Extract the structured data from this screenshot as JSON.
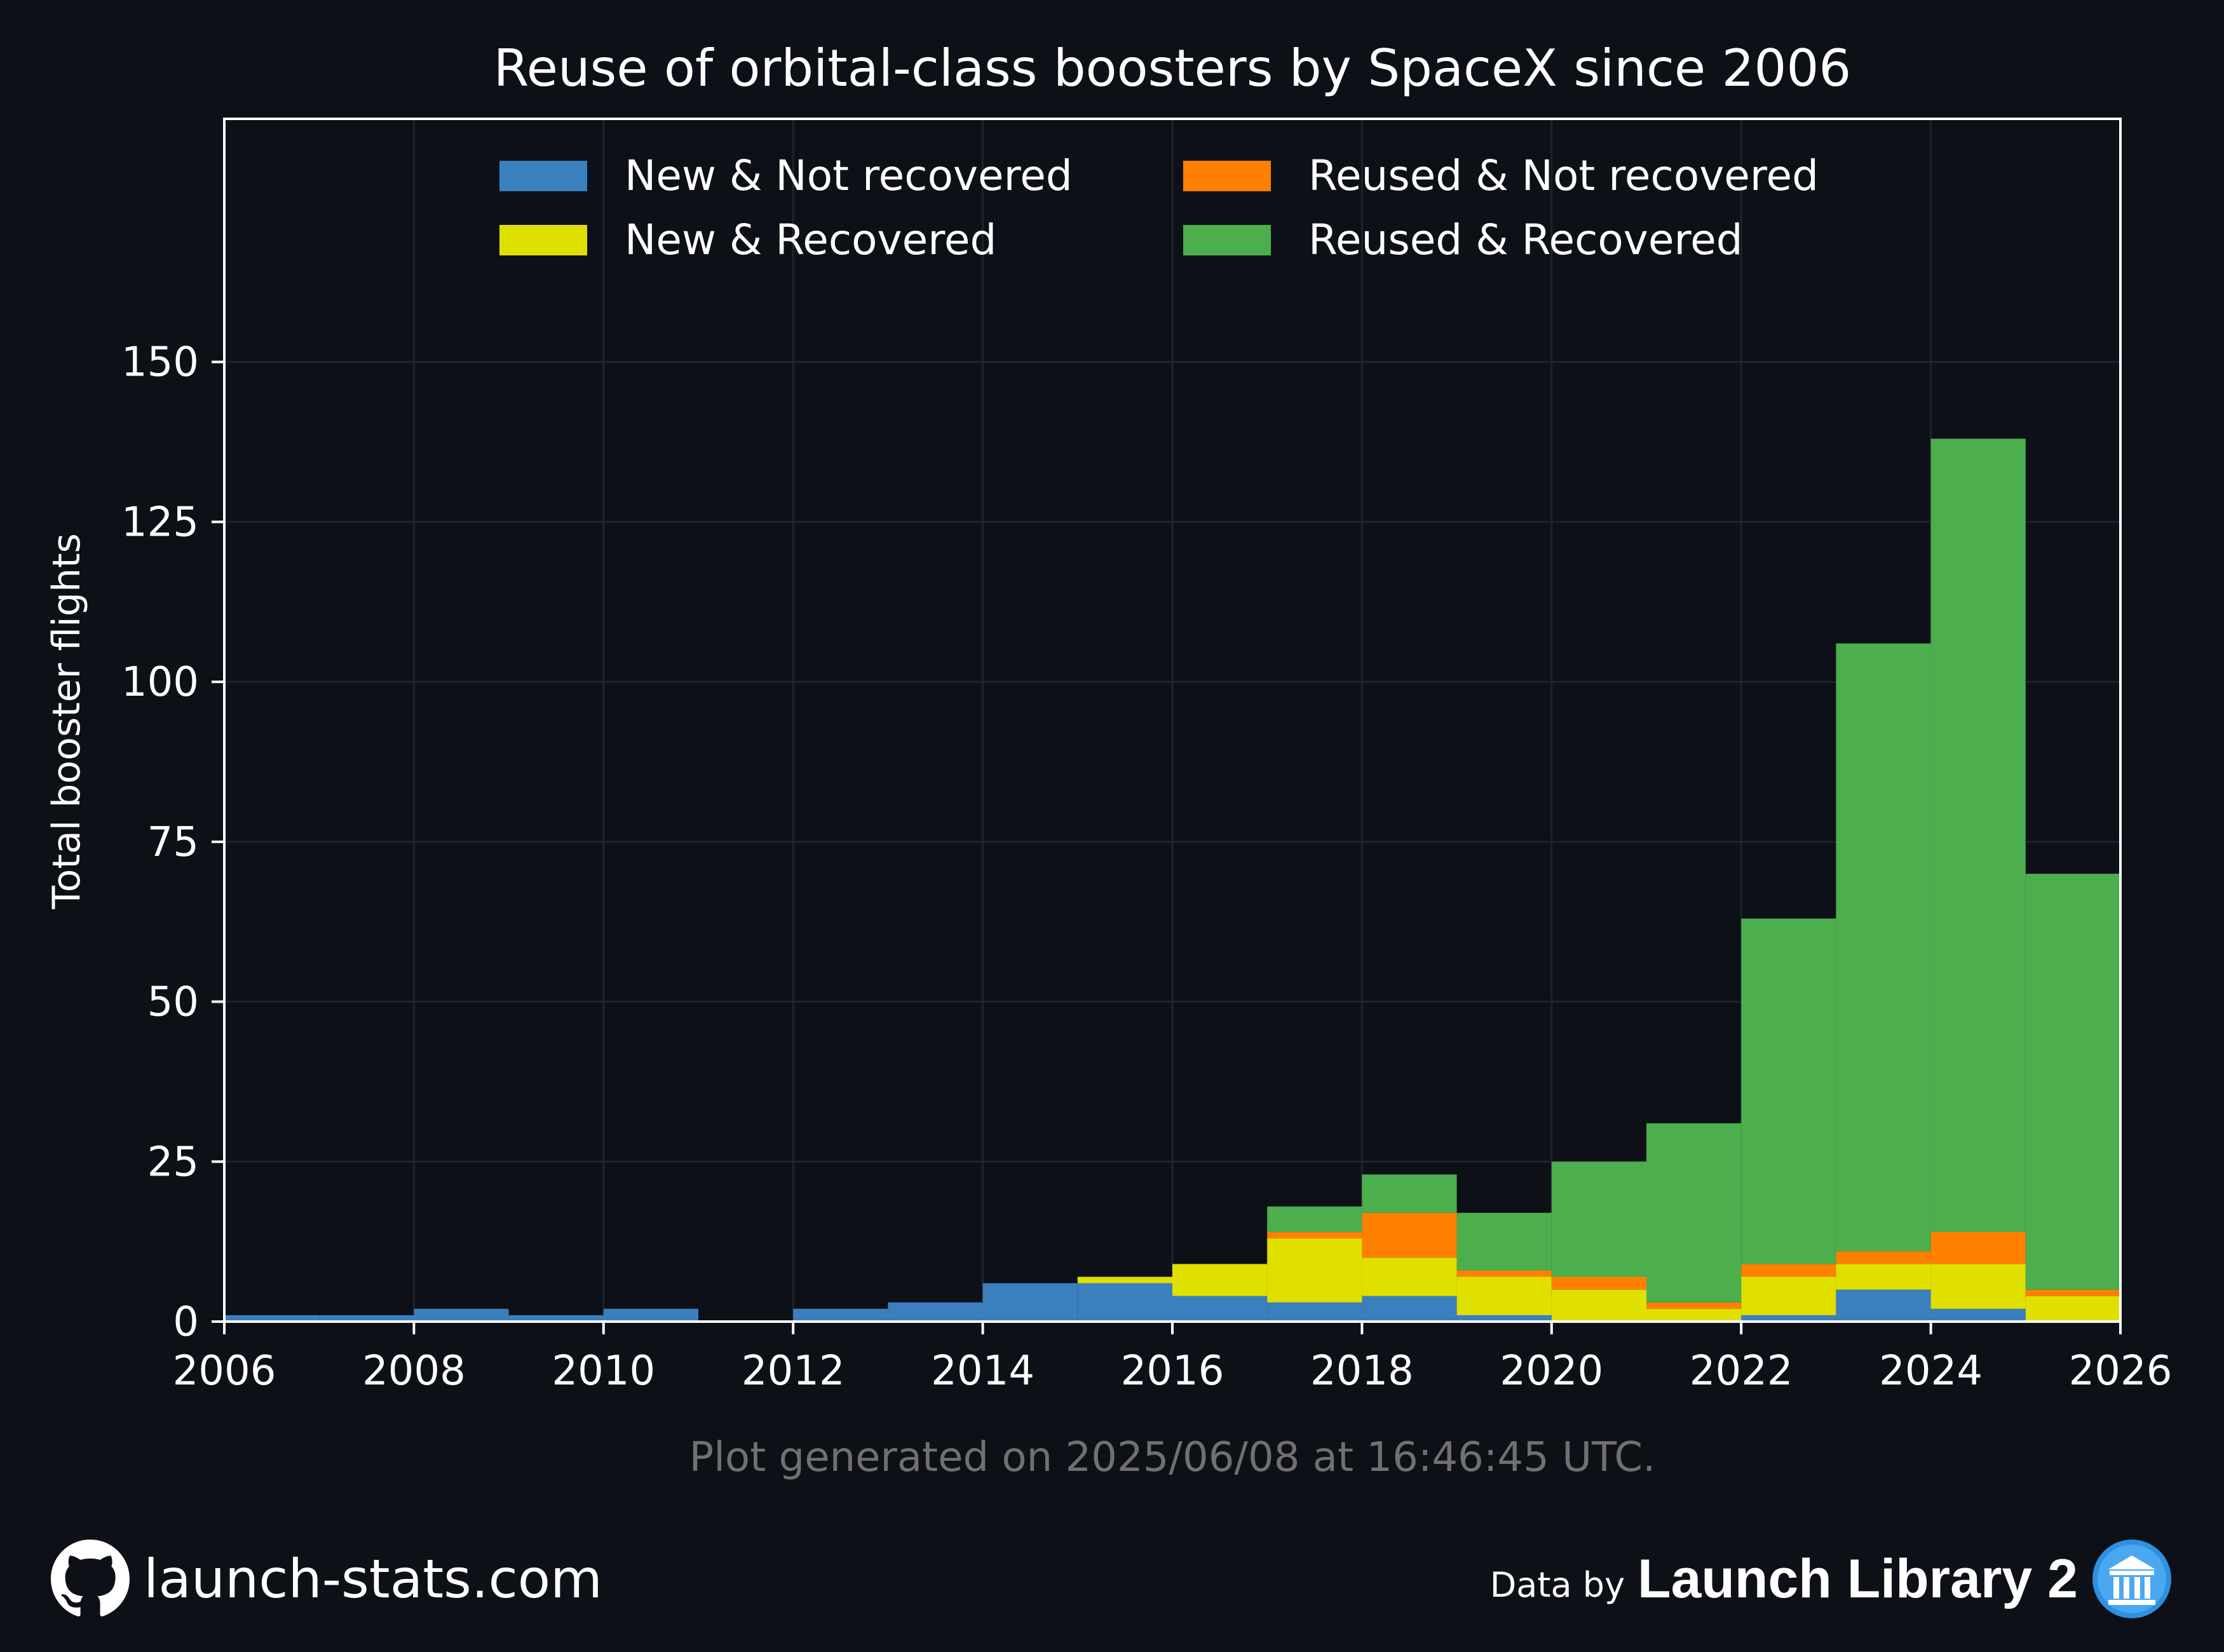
{
  "chart_data": {
    "type": "bar",
    "stacked": true,
    "title": "Reuse of orbital-class boosters by SpaceX since 2006",
    "xlabel": "",
    "ylabel": "Total booster flights",
    "xlim": [
      2006,
      2026
    ],
    "ylim": [
      0,
      188
    ],
    "x_ticks": [
      "2006",
      "2008",
      "2010",
      "2012",
      "2014",
      "2016",
      "2018",
      "2020",
      "2022",
      "2024",
      "2026"
    ],
    "y_ticks": [
      "0",
      "25",
      "50",
      "75",
      "100",
      "125",
      "150"
    ],
    "grid": true,
    "legend_position": "top",
    "bins": [
      2006,
      2007,
      2008,
      2009,
      2010,
      2011,
      2012,
      2013,
      2014,
      2015,
      2016,
      2017,
      2018,
      2019,
      2020,
      2021,
      2022,
      2023,
      2024,
      2025
    ],
    "series": [
      {
        "name": "New & Not recovered",
        "color": "#3a80bf",
        "values": [
          1,
          1,
          2,
          1,
          2,
          0,
          2,
          3,
          6,
          6,
          4,
          3,
          4,
          1,
          0,
          0,
          1,
          5,
          2,
          0
        ]
      },
      {
        "name": "New & Recovered",
        "color": "#e0e000",
        "values": [
          0,
          0,
          0,
          0,
          0,
          0,
          0,
          0,
          0,
          1,
          5,
          10,
          6,
          6,
          5,
          2,
          6,
          4,
          7,
          4
        ]
      },
      {
        "name": "Reused & Not recovered",
        "color": "#ff8000",
        "values": [
          0,
          0,
          0,
          0,
          0,
          0,
          0,
          0,
          0,
          0,
          0,
          1,
          7,
          1,
          2,
          1,
          2,
          2,
          5,
          1
        ]
      },
      {
        "name": "Reused & Recovered",
        "color": "#4cae4c",
        "values": [
          0,
          0,
          0,
          0,
          0,
          0,
          0,
          0,
          0,
          0,
          0,
          4,
          6,
          9,
          18,
          28,
          54,
          95,
          124,
          65
        ]
      }
    ]
  },
  "caption": "Plot generated on 2025/06/08 at 16:46:45 UTC.",
  "footer": {
    "site": "launch-stats.com",
    "data_by": "Data by",
    "source": "Launch Library 2",
    "icons": [
      "github-icon",
      "launch-library-icon"
    ]
  },
  "colors": {
    "background": "#0d1017",
    "text": "#ffffff",
    "caption": "#707070",
    "grid": "#1e232c"
  }
}
